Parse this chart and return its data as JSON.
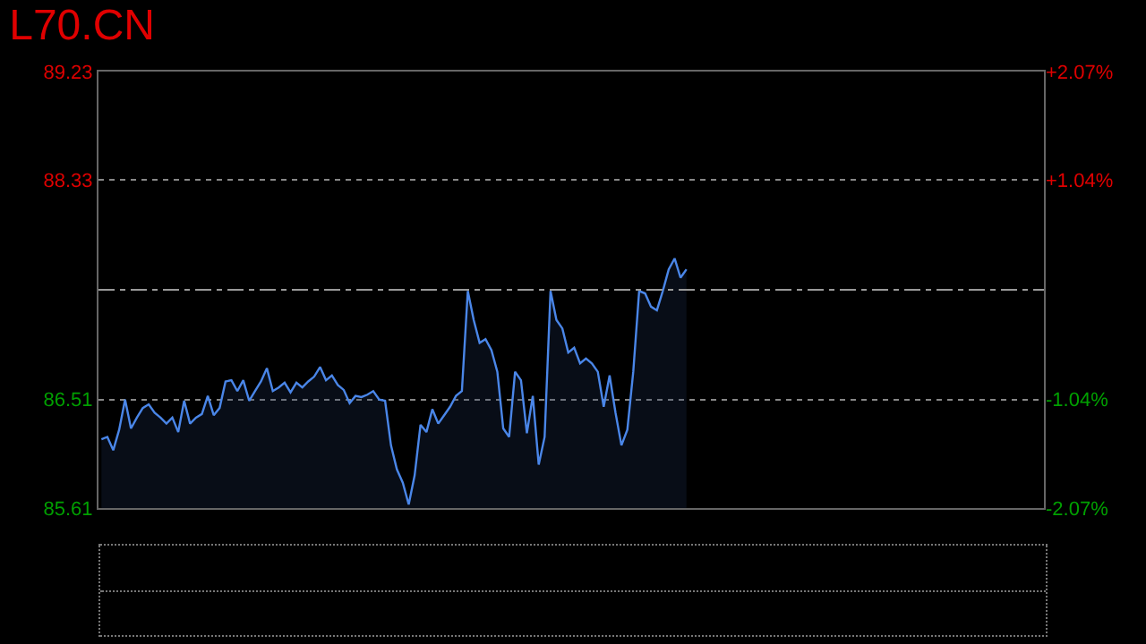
{
  "chart_data": {
    "type": "area",
    "title": "L70.CN",
    "categories": [
      null,
      null,
      null,
      null,
      null,
      null,
      null,
      null,
      null,
      null,
      null,
      null,
      null,
      null,
      null,
      null,
      null,
      null,
      null,
      null,
      null,
      null,
      null,
      null,
      null,
      null,
      null,
      null,
      null,
      null,
      null,
      null,
      null,
      null,
      null,
      null,
      null,
      null,
      null,
      null,
      null,
      null,
      null,
      null,
      null,
      null,
      null,
      null,
      null,
      null,
      null,
      null,
      null,
      null,
      null,
      null,
      null,
      null,
      null,
      null,
      null,
      null,
      null,
      null,
      null,
      null,
      null,
      null,
      null,
      null,
      null,
      null,
      null,
      null,
      null,
      null,
      null,
      null,
      null,
      null,
      null,
      null,
      null,
      null,
      null,
      null,
      null,
      null,
      null,
      null,
      null,
      null,
      null,
      null,
      null,
      null,
      null,
      null,
      null,
      null,
      null,
      null,
      null,
      null,
      null,
      null,
      null,
      null,
      null,
      null,
      null,
      null,
      null,
      null,
      null,
      null,
      null,
      null,
      null,
      null,
      null,
      null,
      null,
      null,
      null,
      null,
      null,
      null,
      null,
      null,
      null,
      null,
      null,
      null,
      null,
      null,
      null,
      null,
      null,
      null,
      null,
      null,
      null,
      null,
      null,
      null,
      null,
      null,
      null,
      null,
      null,
      null,
      null,
      null,
      null,
      null,
      null,
      null,
      null,
      null
    ],
    "series": [
      {
        "color": "#4a86e8",
        "values": [
          86.18,
          86.2,
          86.09,
          86.26,
          86.51,
          86.27,
          86.36,
          86.44,
          86.47,
          86.4,
          86.36,
          86.31,
          86.36,
          86.24,
          86.5,
          86.31,
          86.36,
          86.39,
          86.54,
          86.38,
          86.44,
          86.66,
          86.67,
          86.58,
          86.67,
          86.5,
          86.58,
          86.66,
          86.77,
          86.58,
          86.61,
          86.65,
          86.57,
          86.65,
          86.61,
          86.66,
          86.7,
          86.78,
          86.67,
          86.71,
          86.63,
          86.59,
          86.48,
          86.54,
          86.53,
          86.55,
          86.58,
          86.51,
          86.5,
          86.13,
          85.93,
          85.82,
          85.64,
          85.88,
          86.3,
          86.24,
          86.43,
          86.31,
          86.38,
          86.45,
          86.54,
          86.58,
          87.41,
          87.17,
          86.98,
          87.01,
          86.92,
          86.74,
          86.27,
          86.2,
          86.74,
          86.67,
          86.23,
          86.54,
          85.97,
          86.2,
          87.41,
          87.17,
          87.1,
          86.9,
          86.94,
          86.81,
          86.85,
          86.81,
          86.74,
          86.45,
          86.71,
          86.4,
          86.13,
          86.26,
          86.74,
          87.41,
          87.39,
          87.28,
          87.25,
          87.41,
          87.59,
          87.68,
          87.52,
          87.59,
          null,
          null,
          null,
          null,
          null,
          null,
          null,
          null,
          null,
          null,
          null,
          null,
          null,
          null,
          null,
          null,
          null,
          null,
          null,
          null,
          null,
          null,
          null,
          null,
          null,
          null,
          null,
          null,
          null,
          null,
          null,
          null,
          null,
          null,
          null,
          null,
          null,
          null,
          null,
          null,
          null,
          null,
          null,
          null,
          null,
          null,
          null,
          null,
          null,
          null,
          null,
          null,
          null,
          null,
          null,
          null,
          null,
          null,
          null,
          null
        ]
      }
    ],
    "ylim": [
      85.61,
      89.23
    ],
    "yticks": [
      85.61,
      86.51,
      88.33,
      89.23
    ],
    "y2lim": [
      -2.07,
      2.07
    ],
    "y2ticks": [
      {
        "value": -2.07,
        "label": "-2.07%"
      },
      {
        "value": -1.04,
        "label": "-1.04%"
      },
      {
        "value": 1.04,
        "label": "+1.04%"
      },
      {
        "value": 2.07,
        "label": "+2.07%"
      }
    ],
    "ref_lines": [
      {
        "axis": "y",
        "value": 87.42,
        "label": null,
        "line_style": "dashed"
      }
    ],
    "grid": "y",
    "legend": false,
    "tick_labels": "y",
    "marker": "none",
    "line_style": "solid"
  }
}
